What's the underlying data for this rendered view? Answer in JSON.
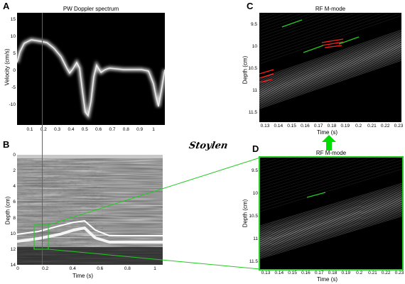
{
  "panels": {
    "A": {
      "letter": "A",
      "title": "PW Doppler spectrum",
      "ylabel": "Velocity (cm/s)",
      "xticks": [
        "0.1",
        "0.2",
        "0.3",
        "0.4",
        "0.5",
        "0.6",
        "0.7",
        "0.8",
        "0.9",
        "1"
      ],
      "yticks": [
        "15",
        "10",
        "5",
        "0",
        "-5",
        "-10"
      ]
    },
    "B": {
      "letter": "B",
      "xlabel": "Time (s)",
      "ylabel": "Depth (cm)",
      "xticks": [
        "0",
        "0.2",
        "0.4",
        "0.6",
        "0.8",
        "1"
      ],
      "yticks": [
        "0",
        "2",
        "4",
        "6",
        "8",
        "10",
        "12",
        "14"
      ]
    },
    "C": {
      "letter": "C",
      "title": "RF M-mode",
      "xlabel": "Time (s)",
      "ylabel": "Depth (cm)",
      "xticks": [
        "0.13",
        "0.14",
        "0.15",
        "0.16",
        "0.17",
        "0.18",
        "0.19",
        "0.2",
        "0.21",
        "0.22",
        "0.23"
      ],
      "yticks": [
        "9.5",
        "10",
        "10.5",
        "11",
        "11.5"
      ]
    },
    "D": {
      "letter": "D",
      "title": "RF M-mode",
      "xlabel": "Time (s)",
      "ylabel": "Depth (cm)",
      "xticks": [
        "0.13",
        "0.14",
        "0.15",
        "0.16",
        "0.17",
        "0.18",
        "0.19",
        "0.2",
        "0.21",
        "0.22",
        "0.23"
      ],
      "yticks": [
        "9.5",
        "10",
        "10.5",
        "11",
        "11.5"
      ]
    }
  },
  "signature": "Stoylen",
  "colors": {
    "marker_line": "#ff2020",
    "highlight_green": "#22cc22",
    "arrow_green": "#00dd00",
    "background": "#000000",
    "stripe": "#dddddd"
  }
}
